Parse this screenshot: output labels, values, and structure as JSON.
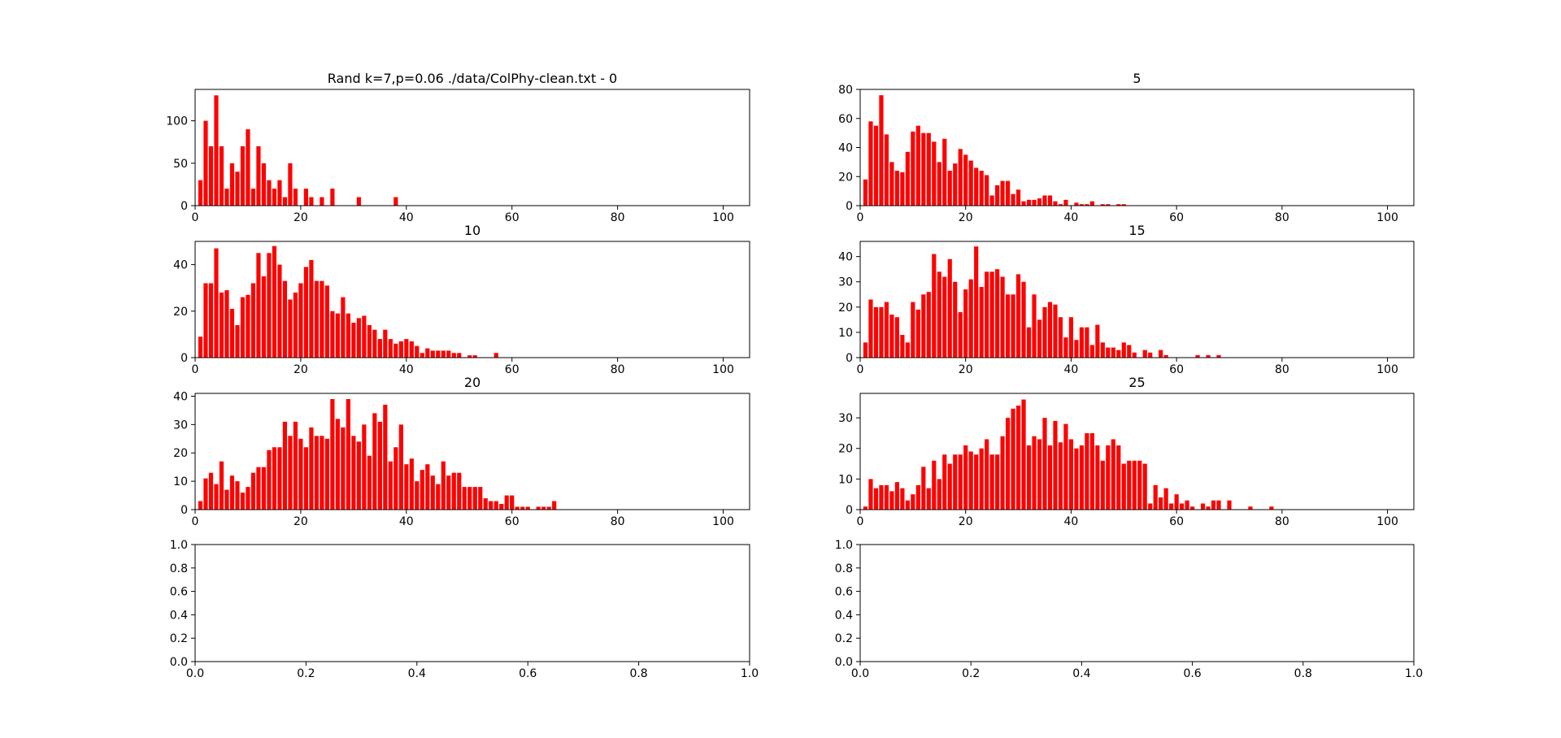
{
  "chart_data": [
    {
      "type": "bar",
      "title": "Rand k=7,p=0.06 ./data/ColPhy-clean.txt - 0",
      "xlim": [
        0,
        105
      ],
      "ylim": [
        0,
        137
      ],
      "xticks": [
        0,
        20,
        40,
        60,
        80,
        100
      ],
      "yticks": [
        0,
        50,
        100
      ],
      "color": "#ff0000",
      "x": [
        0,
        1,
        2,
        3,
        4,
        5,
        6,
        7,
        8,
        9,
        10,
        11,
        12,
        13,
        14,
        15,
        16,
        17,
        18,
        19,
        20,
        21,
        22,
        23,
        24,
        25,
        26,
        27,
        28,
        29,
        30,
        31,
        32,
        33,
        34,
        35,
        36,
        37,
        38,
        39,
        40
      ],
      "values": [
        30,
        100,
        70,
        130,
        70,
        20,
        50,
        40,
        70,
        90,
        20,
        70,
        50,
        30,
        20,
        30,
        10,
        50,
        20,
        0,
        20,
        10,
        0,
        10,
        0,
        20,
        0,
        0,
        0,
        0,
        10,
        0,
        0,
        0,
        0,
        0,
        0,
        10,
        0,
        0,
        0
      ]
    },
    {
      "type": "bar",
      "title": "5",
      "xlim": [
        0,
        105
      ],
      "ylim": [
        0,
        80
      ],
      "xticks": [
        0,
        20,
        40,
        60,
        80,
        100
      ],
      "yticks": [
        0,
        20,
        40,
        60,
        80
      ],
      "color": "#ff0000",
      "x": [
        0,
        1,
        2,
        3,
        4,
        5,
        6,
        7,
        8,
        9,
        10,
        11,
        12,
        13,
        14,
        15,
        16,
        17,
        18,
        19,
        20,
        21,
        22,
        23,
        24,
        25,
        26,
        27,
        28,
        29,
        30,
        31,
        32,
        33,
        34,
        35,
        36,
        37,
        38,
        39,
        40,
        41,
        42,
        43,
        44,
        45,
        46,
        47,
        48,
        49,
        50,
        51
      ],
      "values": [
        18,
        58,
        55,
        76,
        49,
        30,
        24,
        23,
        37,
        51,
        55,
        50,
        50,
        44,
        30,
        46,
        24,
        29,
        39,
        35,
        31,
        26,
        24,
        21,
        7,
        14,
        17,
        17,
        8,
        11,
        3,
        4,
        4,
        5,
        7,
        7,
        3,
        1,
        4,
        0,
        2,
        1,
        1,
        3,
        0,
        1,
        1,
        0,
        1,
        1,
        0,
        0
      ]
    },
    {
      "type": "bar",
      "title": "10",
      "xlim": [
        0,
        105
      ],
      "ylim": [
        0,
        50
      ],
      "xticks": [
        0,
        20,
        40,
        60,
        80,
        100
      ],
      "yticks": [
        0,
        20,
        40
      ],
      "color": "#ff0000",
      "x": [
        0,
        1,
        2,
        3,
        4,
        5,
        6,
        7,
        8,
        9,
        10,
        11,
        12,
        13,
        14,
        15,
        16,
        17,
        18,
        19,
        20,
        21,
        22,
        23,
        24,
        25,
        26,
        27,
        28,
        29,
        30,
        31,
        32,
        33,
        34,
        35,
        36,
        37,
        38,
        39,
        40,
        41,
        42,
        43,
        44,
        45,
        46,
        47,
        48,
        49,
        50,
        51,
        52,
        53,
        54,
        55,
        56,
        57
      ],
      "values": [
        9,
        32,
        32,
        47,
        28,
        29,
        21,
        14,
        26,
        27,
        32,
        45,
        35,
        45,
        48,
        40,
        33,
        25,
        28,
        32,
        39,
        42,
        33,
        33,
        31,
        20,
        19,
        26,
        19,
        15,
        17,
        18,
        14,
        12,
        8,
        12,
        8,
        6,
        7,
        8,
        7,
        5,
        2,
        4,
        3,
        3,
        3,
        3,
        2,
        2,
        0,
        1,
        1,
        0,
        0,
        0,
        2,
        0
      ]
    },
    {
      "type": "bar",
      "title": "15",
      "xlim": [
        0,
        105
      ],
      "ylim": [
        0,
        46
      ],
      "xticks": [
        0,
        20,
        40,
        60,
        80,
        100
      ],
      "yticks": [
        0,
        10,
        20,
        30,
        40
      ],
      "color": "#ff0000",
      "x": [
        0,
        1,
        2,
        3,
        4,
        5,
        6,
        7,
        8,
        9,
        10,
        11,
        12,
        13,
        14,
        15,
        16,
        17,
        18,
        19,
        20,
        21,
        22,
        23,
        24,
        25,
        26,
        27,
        28,
        29,
        30,
        31,
        32,
        33,
        34,
        35,
        36,
        37,
        38,
        39,
        40,
        41,
        42,
        43,
        44,
        45,
        46,
        47,
        48,
        49,
        50,
        51,
        52,
        53,
        54,
        55,
        56,
        57,
        58,
        59,
        60,
        61,
        62,
        63,
        64,
        65,
        66,
        67
      ],
      "values": [
        6,
        23,
        20,
        20,
        22,
        17,
        16,
        9,
        6,
        22,
        19,
        25,
        26,
        41,
        34,
        32,
        39,
        30,
        18,
        27,
        31,
        44,
        28,
        34,
        34,
        35,
        32,
        25,
        25,
        33,
        30,
        12,
        25,
        15,
        20,
        22,
        21,
        16,
        8,
        16,
        7,
        12,
        12,
        5,
        13,
        6,
        4,
        4,
        3,
        6,
        5,
        2,
        0,
        3,
        2,
        0,
        3,
        1,
        0,
        0,
        0,
        0,
        0,
        1,
        0,
        1,
        0,
        1
      ]
    },
    {
      "type": "bar",
      "title": "20",
      "xlim": [
        0,
        105
      ],
      "ylim": [
        0,
        41
      ],
      "xticks": [
        0,
        20,
        40,
        60,
        80,
        100
      ],
      "yticks": [
        0,
        10,
        20,
        30,
        40
      ],
      "color": "#ff0000",
      "x": [
        0,
        1,
        2,
        3,
        4,
        5,
        6,
        7,
        8,
        9,
        10,
        11,
        12,
        13,
        14,
        15,
        16,
        17,
        18,
        19,
        20,
        21,
        22,
        23,
        24,
        25,
        26,
        27,
        28,
        29,
        30,
        31,
        32,
        33,
        34,
        35,
        36,
        37,
        38,
        39,
        40,
        41,
        42,
        43,
        44,
        45,
        46,
        47,
        48,
        49,
        50,
        51,
        52,
        53,
        54,
        55,
        56,
        57,
        58,
        59,
        60,
        61,
        62,
        63,
        64,
        65,
        66,
        67
      ],
      "values": [
        3,
        11,
        13,
        9,
        17,
        7,
        12,
        10,
        6,
        8,
        13,
        15,
        15,
        21,
        22,
        22,
        31,
        26,
        31,
        25,
        22,
        29,
        26,
        26,
        25,
        39,
        32,
        29,
        39,
        26,
        24,
        30,
        19,
        34,
        31,
        37,
        17,
        22,
        30,
        16,
        18,
        10,
        14,
        16,
        12,
        9,
        17,
        12,
        13,
        13,
        8,
        8,
        8,
        8,
        4,
        3,
        3,
        2,
        5,
        5,
        1,
        1,
        1,
        0,
        1,
        1,
        1,
        3
      ]
    },
    {
      "type": "bar",
      "title": "25",
      "xlim": [
        0,
        105
      ],
      "ylim": [
        0,
        38
      ],
      "xticks": [
        0,
        20,
        40,
        60,
        80,
        100
      ],
      "yticks": [
        0,
        10,
        20,
        30
      ],
      "color": "#ff0000",
      "x": [
        0,
        1,
        2,
        3,
        4,
        5,
        6,
        7,
        8,
        9,
        10,
        11,
        12,
        13,
        14,
        15,
        16,
        17,
        18,
        19,
        20,
        21,
        22,
        23,
        24,
        25,
        26,
        27,
        28,
        29,
        30,
        31,
        32,
        33,
        34,
        35,
        36,
        37,
        38,
        39,
        40,
        41,
        42,
        43,
        44,
        45,
        46,
        47,
        48,
        49,
        50,
        51,
        52,
        53,
        54,
        55,
        56,
        57,
        58,
        59,
        60,
        61,
        62,
        63,
        64,
        65,
        66,
        67,
        68,
        69,
        70,
        71,
        72,
        73,
        74,
        75,
        76,
        77
      ],
      "values": [
        1,
        10,
        7,
        8,
        8,
        6,
        9,
        7,
        3,
        5,
        8,
        14,
        7,
        16,
        10,
        18,
        15,
        18,
        18,
        21,
        19,
        18,
        20,
        23,
        18,
        18,
        24,
        30,
        33,
        34,
        36,
        21,
        24,
        23,
        30,
        21,
        29,
        22,
        28,
        23,
        20,
        21,
        25,
        25,
        21,
        16,
        21,
        23,
        21,
        15,
        16,
        16,
        16,
        15,
        2,
        8,
        4,
        7,
        2,
        5,
        2,
        3,
        1,
        0,
        2,
        1,
        3,
        3,
        0,
        3,
        0,
        0,
        0,
        1,
        0,
        0,
        0,
        1
      ]
    },
    {
      "type": "bar",
      "title": "",
      "xlim": [
        0,
        1
      ],
      "ylim": [
        0,
        1
      ],
      "xticks": [
        0.0,
        0.2,
        0.4,
        0.6,
        0.8,
        1.0
      ],
      "yticks": [
        0.0,
        0.2,
        0.4,
        0.6,
        0.8,
        1.0
      ],
      "color": "#ff0000",
      "x": [],
      "values": []
    },
    {
      "type": "bar",
      "title": "",
      "xlim": [
        0,
        1
      ],
      "ylim": [
        0,
        1
      ],
      "xticks": [
        0.0,
        0.2,
        0.4,
        0.6,
        0.8,
        1.0
      ],
      "yticks": [
        0.0,
        0.2,
        0.4,
        0.6,
        0.8,
        1.0
      ],
      "color": "#ff0000",
      "x": [],
      "values": []
    }
  ]
}
